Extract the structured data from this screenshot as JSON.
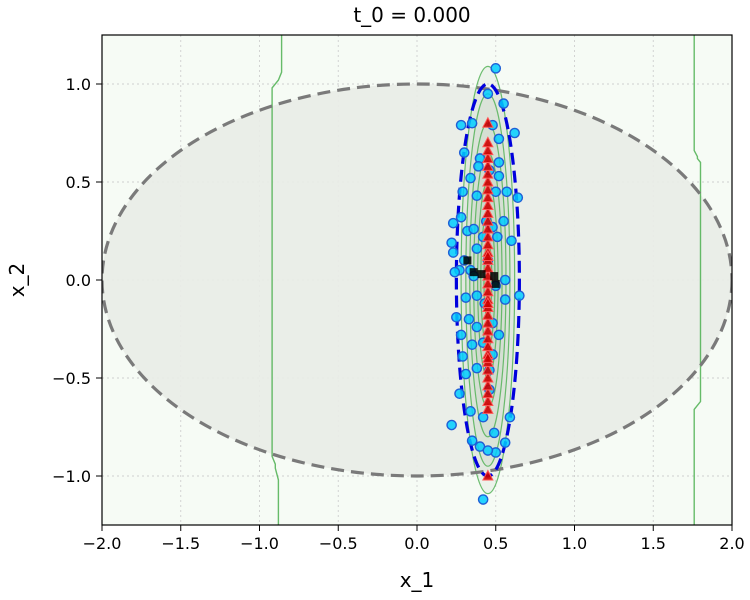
{
  "chart_data": {
    "type": "scatter",
    "title": "t_0 = 0.000",
    "xlabel": "x_1",
    "ylabel": "x_2",
    "xlim": [
      -2.0,
      2.0
    ],
    "ylim": [
      -1.25,
      1.25
    ],
    "xticks": [
      -2.0,
      -1.5,
      -1.0,
      -0.5,
      0.0,
      0.5,
      1.0,
      1.5,
      2.0
    ],
    "xtick_labels": [
      "−2.0",
      "−1.5",
      "−1.0",
      "−0.5",
      "0.0",
      "0.5",
      "1.0",
      "1.5",
      "2.0"
    ],
    "yticks": [
      -1.0,
      -0.5,
      0.0,
      0.5,
      1.0
    ],
    "ytick_labels": [
      "−1.0",
      "−0.5",
      "0.0",
      "0.5",
      "1.0"
    ],
    "grid": true,
    "colors": {
      "background": "#f6fbf5",
      "outer_ellipse_fill": "#e9ece7",
      "outer_ellipse_stroke": "#7a7a7a",
      "inner_ellipse_stroke": "#0000dd",
      "contour": "#4caf50",
      "contour_fill": "#aec8ae",
      "point_face": "#00ccff",
      "point_edge": "#1f5fd6",
      "triangle_face": "#cc0000",
      "triangle_edge": "#ff5555",
      "mean_marker": "#000000"
    },
    "outer_ellipse": {
      "cx": 0.0,
      "cy": 0.0,
      "rx": 2.0,
      "ry": 1.0
    },
    "inner_ellipse": {
      "cx": 0.45,
      "cy": 0.0,
      "rx": 0.2,
      "ry": 1.0
    },
    "contour_lines": {
      "left": [
        [
          -0.88,
          -1.25
        ],
        [
          -0.88,
          -1.02
        ],
        [
          -0.9,
          -0.96
        ],
        [
          -0.9,
          -0.94
        ],
        [
          -0.92,
          -0.9
        ],
        [
          -0.92,
          0.98
        ],
        [
          -0.88,
          1.02
        ],
        [
          -0.86,
          1.06
        ],
        [
          -0.86,
          1.25
        ]
      ],
      "right": [
        [
          1.76,
          -1.25
        ],
        [
          1.76,
          -0.66
        ],
        [
          1.8,
          -0.62
        ],
        [
          1.8,
          0.6
        ],
        [
          1.78,
          0.62
        ],
        [
          1.78,
          0.63
        ],
        [
          1.76,
          0.66
        ],
        [
          1.76,
          1.25
        ]
      ]
    },
    "contour_ellipses": [
      {
        "cx": 0.45,
        "cy": 0.0,
        "rx": 0.17,
        "ry": 1.09
      },
      {
        "cx": 0.45,
        "cy": 0.0,
        "rx": 0.14,
        "ry": 0.95
      },
      {
        "cx": 0.45,
        "cy": 0.0,
        "rx": 0.115,
        "ry": 0.8
      },
      {
        "cx": 0.45,
        "cy": 0.0,
        "rx": 0.09,
        "ry": 0.65
      },
      {
        "cx": 0.45,
        "cy": 0.0,
        "rx": 0.065,
        "ry": 0.5
      },
      {
        "cx": 0.45,
        "cy": 0.0,
        "rx": 0.045,
        "ry": 0.35
      },
      {
        "cx": 0.45,
        "cy": 0.0,
        "rx": 0.025,
        "ry": 0.2
      }
    ],
    "series": [
      {
        "marker": "circle",
        "points": [
          [
            0.5,
            1.08
          ],
          [
            0.45,
            0.95
          ],
          [
            0.55,
            0.9
          ],
          [
            0.28,
            0.79
          ],
          [
            0.35,
            0.8
          ],
          [
            0.48,
            0.79
          ],
          [
            0.62,
            0.75
          ],
          [
            0.52,
            0.72
          ],
          [
            0.3,
            0.65
          ],
          [
            0.4,
            0.62
          ],
          [
            0.52,
            0.6
          ],
          [
            0.46,
            0.56
          ],
          [
            0.34,
            0.52
          ],
          [
            0.52,
            0.53
          ],
          [
            0.29,
            0.45
          ],
          [
            0.57,
            0.45
          ],
          [
            0.38,
            0.43
          ],
          [
            0.5,
            0.45
          ],
          [
            0.64,
            0.42
          ],
          [
            0.28,
            0.32
          ],
          [
            0.44,
            0.3
          ],
          [
            0.55,
            0.3
          ],
          [
            0.32,
            0.25
          ],
          [
            0.36,
            0.26
          ],
          [
            0.48,
            0.27
          ],
          [
            0.51,
            0.22
          ],
          [
            0.23,
            0.29
          ],
          [
            0.42,
            0.22
          ],
          [
            0.22,
            0.19
          ],
          [
            0.38,
            0.16
          ],
          [
            0.23,
            0.14
          ],
          [
            0.3,
            0.1
          ],
          [
            0.45,
            0.1
          ],
          [
            0.34,
            0.05
          ],
          [
            0.27,
            0.05
          ],
          [
            0.24,
            0.04
          ],
          [
            0.36,
            0.02
          ],
          [
            0.5,
            -0.03
          ],
          [
            0.38,
            -0.08
          ],
          [
            0.31,
            -0.09
          ],
          [
            0.65,
            -0.08
          ],
          [
            0.56,
            -0.1
          ],
          [
            0.43,
            -0.12
          ],
          [
            0.25,
            -0.19
          ],
          [
            0.33,
            -0.2
          ],
          [
            0.48,
            -0.22
          ],
          [
            0.38,
            -0.24
          ],
          [
            0.28,
            -0.28
          ],
          [
            0.52,
            -0.28
          ],
          [
            0.42,
            -0.32
          ],
          [
            0.35,
            -0.33
          ],
          [
            0.29,
            -0.39
          ],
          [
            0.48,
            -0.38
          ],
          [
            0.38,
            -0.45
          ],
          [
            0.46,
            -0.46
          ],
          [
            0.31,
            -0.48
          ],
          [
            0.27,
            -0.58
          ],
          [
            0.46,
            -0.56
          ],
          [
            0.34,
            -0.67
          ],
          [
            0.22,
            -0.74
          ],
          [
            0.42,
            -0.7
          ],
          [
            0.59,
            -0.7
          ],
          [
            0.49,
            -0.78
          ],
          [
            0.35,
            -0.82
          ],
          [
            0.4,
            -0.85
          ],
          [
            0.5,
            -0.88
          ],
          [
            0.56,
            -0.83
          ],
          [
            0.45,
            -0.87
          ],
          [
            0.42,
            -1.12
          ],
          [
            0.39,
            0.58
          ],
          [
            0.6,
            0.2
          ],
          [
            0.56,
            0.0
          ]
        ]
      },
      {
        "marker": "triangle",
        "points": [
          [
            0.45,
            -1.0
          ],
          [
            0.45,
            -0.66
          ],
          [
            0.45,
            -0.62
          ],
          [
            0.45,
            -0.58
          ],
          [
            0.45,
            -0.54
          ],
          [
            0.45,
            -0.5
          ],
          [
            0.45,
            -0.46
          ],
          [
            0.45,
            -0.42
          ],
          [
            0.45,
            -0.38
          ],
          [
            0.45,
            -0.34
          ],
          [
            0.45,
            -0.3
          ],
          [
            0.45,
            -0.26
          ],
          [
            0.45,
            -0.22
          ],
          [
            0.45,
            -0.18
          ],
          [
            0.45,
            -0.14
          ],
          [
            0.45,
            -0.1
          ],
          [
            0.45,
            -0.06
          ],
          [
            0.45,
            -0.02
          ],
          [
            0.45,
            0.02
          ],
          [
            0.45,
            0.06
          ],
          [
            0.45,
            0.1
          ],
          [
            0.45,
            0.14
          ],
          [
            0.45,
            0.18
          ],
          [
            0.45,
            0.22
          ],
          [
            0.45,
            0.26
          ],
          [
            0.45,
            0.3
          ],
          [
            0.45,
            0.34
          ],
          [
            0.45,
            0.38
          ],
          [
            0.45,
            0.42
          ],
          [
            0.45,
            0.46
          ],
          [
            0.45,
            0.5
          ],
          [
            0.45,
            0.54
          ],
          [
            0.45,
            0.58
          ],
          [
            0.45,
            0.62
          ],
          [
            0.45,
            0.66
          ],
          [
            0.45,
            0.7
          ],
          [
            0.45,
            0.8
          ],
          [
            0.45,
            0.12
          ],
          [
            0.45,
            -0.12
          ],
          [
            0.45,
            -0.4
          ]
        ]
      },
      {
        "marker": "square",
        "points": [
          [
            0.32,
            0.1
          ],
          [
            0.36,
            0.04
          ],
          [
            0.41,
            0.03
          ],
          [
            0.49,
            0.02
          ],
          [
            0.5,
            -0.02
          ]
        ]
      }
    ]
  }
}
